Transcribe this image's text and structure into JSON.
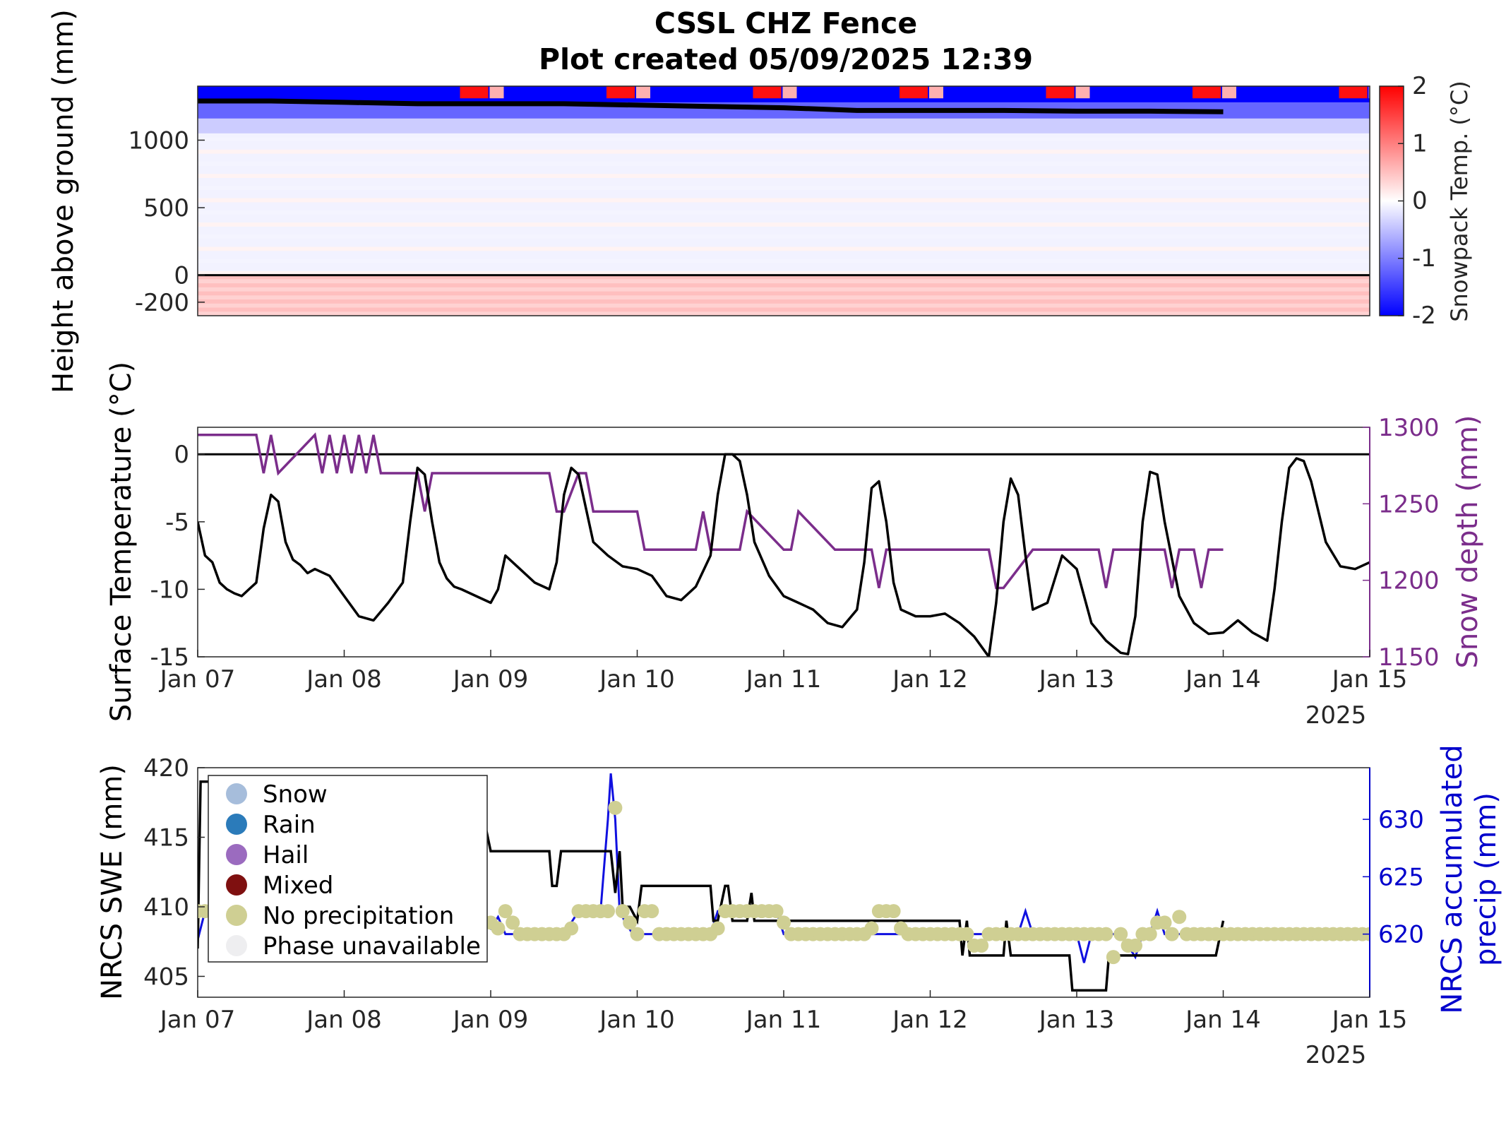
{
  "title_line1": "CSSL CHZ Fence",
  "title_line2": "Plot created 05/09/2025 12:39",
  "colors": {
    "snow_depth": "#7b2d8b",
    "precip_axis": "#0000cc",
    "precip_line": "#1010e0",
    "no_precip_marker": "#cfcf93",
    "cold": "#0000ff",
    "warm": "#ff0000"
  },
  "chart_data": [
    {
      "type": "heatmap",
      "ylabel": "Height above ground (mm)",
      "colorbar_label": "Snowpack Temp. (°C)",
      "colorbar_ticks": [
        "2",
        "1",
        "0",
        "-1",
        "-2"
      ],
      "clim": [
        -2,
        2
      ],
      "ylim": [
        -300,
        1400
      ],
      "y_ticks": [
        "1000",
        "500",
        "0",
        "-200"
      ],
      "y_tick_values": [
        1000,
        500,
        0,
        -200
      ],
      "xlim_days": [
        "Jan 07",
        "Jan 15"
      ],
      "layers": [
        {
          "from": 1280,
          "to": 1400,
          "temp": -2
        },
        {
          "from": 1160,
          "to": 1280,
          "temp": -1.2
        },
        {
          "from": 1050,
          "to": 1160,
          "temp": -0.4
        },
        {
          "from": 0,
          "to": 1050,
          "temp": -0.1
        },
        {
          "from": -300,
          "to": 0,
          "temp": 0.5
        }
      ],
      "warm_surface_events_day": [
        1.8,
        2.8,
        3.8,
        4.8,
        5.8,
        6.8,
        7.8
      ],
      "snow_depth_line": {
        "x_days": [
          0,
          0.5,
          1,
          1.5,
          2,
          2.5,
          3,
          3.5,
          4,
          4.5,
          5,
          5.5,
          6,
          6.5,
          7
        ],
        "y": [
          1290,
          1290,
          1280,
          1270,
          1270,
          1270,
          1260,
          1250,
          1240,
          1220,
          1220,
          1220,
          1215,
          1215,
          1210
        ]
      },
      "ground_line": 0
    },
    {
      "type": "line",
      "ylabel": "Surface Temperature (°C)",
      "ylabel_right": "Snow depth (mm)",
      "ylim": [
        -15,
        2
      ],
      "ylim_right": [
        1150,
        1300
      ],
      "y_ticks": [
        "0",
        "-5",
        "-10",
        "-15"
      ],
      "y_tick_values": [
        0,
        -5,
        -10,
        -15
      ],
      "y_ticks_right": [
        "1300",
        "1250",
        "1200",
        "1150"
      ],
      "y_tick_values_right": [
        1300,
        1250,
        1200,
        1150
      ],
      "x_ticks": [
        "Jan 07",
        "Jan 08",
        "Jan 09",
        "Jan 10",
        "Jan 11",
        "Jan 12",
        "Jan 13",
        "Jan 14",
        "Jan 15"
      ],
      "year_label": "2025",
      "zero_line": 0,
      "series": [
        {
          "axis": "left",
          "x_days": [
            0,
            0.05,
            0.1,
            0.15,
            0.2,
            0.25,
            0.3,
            0.35,
            0.4,
            0.45,
            0.5,
            0.55,
            0.6,
            0.65,
            0.7,
            0.75,
            0.8,
            0.9,
            1.0,
            1.1,
            1.2,
            1.3,
            1.4,
            1.45,
            1.5,
            1.55,
            1.6,
            1.65,
            1.7,
            1.75,
            1.8,
            1.9,
            2.0,
            2.05,
            2.1,
            2.2,
            2.3,
            2.4,
            2.45,
            2.5,
            2.55,
            2.6,
            2.65,
            2.7,
            2.8,
            2.9,
            3.0,
            3.1,
            3.2,
            3.3,
            3.4,
            3.5,
            3.55,
            3.6,
            3.65,
            3.7,
            3.75,
            3.8,
            3.9,
            4.0,
            4.1,
            4.2,
            4.3,
            4.4,
            4.5,
            4.55,
            4.6,
            4.65,
            4.7,
            4.75,
            4.8,
            4.9,
            5.0,
            5.1,
            5.2,
            5.3,
            5.4,
            5.45,
            5.5,
            5.55,
            5.6,
            5.65,
            5.7,
            5.8,
            5.9,
            6.0,
            6.1,
            6.2,
            6.3,
            6.35,
            6.4,
            6.45,
            6.5,
            6.55,
            6.6,
            6.7,
            6.8,
            6.9,
            7.0,
            7.1,
            7.2,
            7.3,
            7.35,
            7.4,
            7.45,
            7.5,
            7.55,
            7.6,
            7.7,
            7.8,
            7.9,
            8.0
          ],
          "y": [
            -5,
            -7.5,
            -8,
            -9.5,
            -10,
            -10.3,
            -10.5,
            -10,
            -9.5,
            -5.5,
            -3,
            -3.5,
            -6.5,
            -7.8,
            -8.2,
            -8.8,
            -8.5,
            -9,
            -10.5,
            -12,
            -12.3,
            -11,
            -9.5,
            -5,
            -1,
            -1.5,
            -5,
            -8,
            -9.2,
            -9.8,
            -10,
            -10.5,
            -11,
            -10,
            -7.5,
            -8.5,
            -9.5,
            -10,
            -8,
            -3,
            -1,
            -1.5,
            -4,
            -6.5,
            -7.5,
            -8.3,
            -8.5,
            -9,
            -10.5,
            -10.8,
            -9.8,
            -7.5,
            -3,
            0,
            0,
            -0.5,
            -3,
            -6.5,
            -9,
            -10.5,
            -11,
            -11.5,
            -12.5,
            -12.8,
            -11.5,
            -8,
            -2.5,
            -2,
            -5,
            -9.5,
            -11.5,
            -12,
            -12,
            -11.8,
            -12.5,
            -13.5,
            -15,
            -11,
            -5,
            -1.8,
            -3,
            -7.5,
            -11.5,
            -11,
            -7.5,
            -8.5,
            -12.5,
            -13.8,
            -14.7,
            -14.8,
            -12,
            -5,
            -1.3,
            -1.5,
            -5,
            -10.5,
            -12.5,
            -13.3,
            -13.2,
            -12.3,
            -13.2,
            -13.8,
            -10,
            -5,
            -1,
            -0.3,
            -0.5,
            -2,
            -6.5,
            -8.3,
            -8.5,
            -8
          ]
        },
        {
          "axis": "right",
          "x_days": [
            0,
            0.4,
            0.45,
            0.5,
            0.55,
            0.8,
            0.85,
            0.9,
            0.95,
            1.0,
            1.05,
            1.1,
            1.15,
            1.2,
            1.25,
            1.3,
            1.5,
            1.55,
            1.6,
            2.4,
            2.45,
            2.5,
            2.6,
            2.65,
            2.7,
            3.0,
            3.05,
            3.4,
            3.45,
            3.5,
            3.7,
            3.75,
            4.0,
            4.05,
            4.1,
            4.35,
            4.4,
            4.45,
            4.6,
            4.65,
            4.7,
            5.4,
            5.45,
            5.5,
            5.7,
            6.1,
            6.15,
            6.2,
            6.25,
            6.3,
            6.4,
            6.45,
            6.5,
            6.6,
            6.65,
            6.7,
            6.8,
            6.85,
            6.9,
            7.0
          ],
          "y": [
            1295,
            1295,
            1270,
            1295,
            1270,
            1295,
            1270,
            1295,
            1270,
            1295,
            1270,
            1295,
            1270,
            1295,
            1270,
            1270,
            1270,
            1245,
            1270,
            1270,
            1245,
            1245,
            1270,
            1270,
            1245,
            1245,
            1220,
            1220,
            1245,
            1220,
            1220,
            1245,
            1220,
            1220,
            1245,
            1220,
            1220,
            1220,
            1220,
            1195,
            1220,
            1220,
            1195,
            1195,
            1220,
            1220,
            1220,
            1195,
            1220,
            1220,
            1220,
            1220,
            1220,
            1220,
            1195,
            1220,
            1220,
            1195,
            1220,
            1220
          ]
        }
      ]
    },
    {
      "type": "line",
      "ylabel": "NRCS SWE (mm)",
      "ylabel_right_line1": "NRCS accumulated",
      "ylabel_right_line2": "precip (mm)",
      "ylim": [
        403.5,
        420
      ],
      "ylim_right": [
        614.5,
        634.5
      ],
      "y_ticks": [
        "420",
        "415",
        "410",
        "405"
      ],
      "y_tick_values": [
        420,
        415,
        410,
        405
      ],
      "y_ticks_right": [
        "630",
        "625",
        "620"
      ],
      "y_tick_values_right": [
        630,
        625,
        620
      ],
      "x_ticks": [
        "Jan 07",
        "Jan 08",
        "Jan 09",
        "Jan 10",
        "Jan 11",
        "Jan 12",
        "Jan 13",
        "Jan 14",
        "Jan 15"
      ],
      "year_label": "2025",
      "legend": {
        "position": "top-left",
        "entries": [
          {
            "label": "Snow",
            "color": "#a6bddb"
          },
          {
            "label": "Rain",
            "color": "#2b7bba"
          },
          {
            "label": "Hail",
            "color": "#9b6bbf"
          },
          {
            "label": "Mixed",
            "color": "#7f1010"
          },
          {
            "label": "No precipitation",
            "color": "#cfcf93"
          },
          {
            "label": "Phase unavailable",
            "color": "#eeeef0"
          }
        ]
      },
      "swe": {
        "x_days": [
          0,
          0.02,
          0.05,
          1.9,
          2.0,
          2.05,
          2.4,
          2.42,
          2.45,
          2.48,
          2.5,
          2.82,
          2.85,
          2.88,
          2.9,
          2.95,
          3.0,
          3.03,
          3.05,
          3.5,
          3.52,
          3.55,
          3.6,
          3.62,
          3.65,
          3.75,
          3.78,
          3.8,
          3.83,
          3.85,
          4.0,
          4.03,
          4.05,
          4.1,
          4.12,
          4.15,
          5.2,
          5.22,
          5.25,
          5.27,
          5.3,
          5.5,
          5.52,
          5.55,
          5.6,
          5.62,
          5.65,
          5.95,
          5.97,
          6.0,
          6.2,
          6.22,
          6.25,
          6.35,
          6.37,
          6.4,
          6.45,
          6.5,
          6.52,
          6.55,
          6.58,
          6.62,
          6.65,
          6.95,
          7.0
        ],
        "y": [
          407,
          419,
          419,
          419,
          414,
          414,
          414,
          411.5,
          411.5,
          414,
          414,
          414,
          411,
          414,
          410,
          410,
          409,
          411.5,
          411.5,
          411.5,
          409,
          409,
          411.5,
          411.5,
          409,
          409,
          411,
          409,
          409,
          409,
          409,
          409,
          409,
          409,
          409,
          409,
          409,
          406.5,
          409,
          406.5,
          406.5,
          406.5,
          409,
          406.5,
          406.5,
          406.5,
          406.5,
          406.5,
          404,
          404,
          404,
          406.5,
          406.5,
          406.5,
          406.5,
          406.5,
          406.5,
          406.5,
          406.5,
          406.5,
          406.5,
          406.5,
          406.5,
          406.5,
          409
        ]
      },
      "precip": {
        "x_days": [
          0,
          0.05,
          1.9,
          1.95,
          2.0,
          2.05,
          2.1,
          2.2,
          2.5,
          2.6,
          2.75,
          2.8,
          2.82,
          2.85,
          2.88,
          2.92,
          2.97,
          3.05,
          3.5,
          3.55,
          3.6,
          3.95,
          4.0,
          5.6,
          5.65,
          5.7,
          6.0,
          6.05,
          6.1,
          6.15,
          6.2,
          6.25,
          6.3,
          6.4,
          6.45,
          6.5,
          6.55,
          6.6,
          6.65,
          6.7,
          8.0
        ],
        "y": [
          619.5,
          622,
          620,
          621.5,
          620.5,
          621.5,
          620,
          620,
          620,
          622,
          622,
          630,
          634,
          630,
          622,
          621,
          620,
          620,
          620,
          622,
          622,
          622,
          620,
          620,
          622,
          620,
          620,
          617.5,
          620,
          620,
          620,
          620,
          620,
          618,
          620,
          620,
          622,
          620,
          620,
          620,
          620
        ]
      },
      "no_precip_points": {
        "x_days": [
          0,
          0.05,
          2.0,
          2.05,
          2.1,
          2.15,
          2.2,
          2.25,
          2.3,
          2.35,
          2.4,
          2.45,
          2.5,
          2.55,
          2.6,
          2.65,
          2.7,
          2.75,
          2.8,
          2.85,
          2.9,
          2.95,
          3.0,
          3.05,
          3.1,
          3.15,
          3.2,
          3.25,
          3.3,
          3.35,
          3.4,
          3.45,
          3.5,
          3.55,
          3.6,
          3.65,
          3.7,
          3.75,
          3.8,
          3.85,
          3.9,
          3.95,
          4.0,
          4.05,
          4.1,
          4.15,
          4.2,
          4.25,
          4.3,
          4.35,
          4.4,
          4.45,
          4.5,
          4.55,
          4.6,
          4.65,
          4.7,
          4.75,
          4.8,
          4.85,
          4.9,
          4.95,
          5.0,
          5.05,
          5.1,
          5.15,
          5.2,
          5.25,
          5.3,
          5.35,
          5.4,
          5.45,
          5.5,
          5.55,
          5.6,
          5.65,
          5.7,
          5.75,
          5.8,
          5.85,
          5.9,
          5.95,
          6.0,
          6.05,
          6.1,
          6.15,
          6.2,
          6.25,
          6.3,
          6.35,
          6.4,
          6.45,
          6.5,
          6.55,
          6.6,
          6.65,
          6.7,
          6.75,
          6.8,
          6.85,
          6.9,
          6.95,
          7.0,
          7.05,
          7.1,
          7.15,
          7.2,
          7.25,
          7.3,
          7.35,
          7.4,
          7.45,
          7.5,
          7.55,
          7.6,
          7.65,
          7.7,
          7.75,
          7.8,
          7.85,
          7.9,
          7.95,
          8.0
        ],
        "y": [
          622,
          622,
          621,
          620.5,
          622,
          621,
          620,
          620,
          620,
          620,
          620,
          620,
          620,
          620.5,
          622,
          622,
          622,
          622,
          622,
          631,
          622,
          621,
          620,
          622,
          622,
          620,
          620,
          620,
          620,
          620,
          620,
          620,
          620,
          620.5,
          622,
          622,
          622,
          622,
          622,
          622,
          622,
          622,
          621,
          620,
          620,
          620,
          620,
          620,
          620,
          620,
          620,
          620,
          620,
          620,
          620.5,
          622,
          622,
          622,
          620.5,
          620,
          620,
          620,
          620,
          620,
          620,
          620,
          620,
          620,
          619,
          619,
          620,
          620,
          620,
          620,
          620,
          620,
          620,
          620,
          620,
          620,
          620,
          620,
          620,
          620,
          620,
          620,
          620,
          618,
          620,
          619,
          619,
          620,
          620,
          621,
          621,
          620,
          621.5,
          620,
          620,
          620,
          620,
          620,
          620,
          620,
          620,
          620,
          620,
          620,
          620,
          620,
          620,
          620,
          620,
          620,
          620,
          620,
          620,
          620,
          620,
          620,
          620,
          620,
          620
        ]
      }
    }
  ]
}
